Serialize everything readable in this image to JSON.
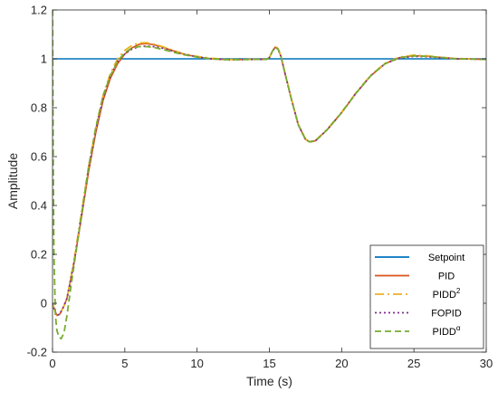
{
  "chart_data": {
    "type": "line",
    "title": "",
    "xlabel": "Time (s)",
    "ylabel": "Amplitude",
    "xlim": [
      0,
      30
    ],
    "ylim": [
      -0.2,
      1.2
    ],
    "x_ticks": [
      0,
      5,
      10,
      15,
      20,
      25,
      30
    ],
    "x_tick_labels": [
      "0",
      "5",
      "10",
      "15",
      "20",
      "25",
      "30"
    ],
    "y_ticks": [
      -0.2,
      0,
      0.2,
      0.4,
      0.6,
      0.8,
      1,
      1.2
    ],
    "y_tick_labels": [
      "-0.2",
      "0",
      "0.2",
      "0.4",
      "0.6",
      "0.8",
      "1",
      "1.2"
    ],
    "grid": false,
    "legend_position": "bottom-right",
    "series": [
      {
        "name": "Setpoint",
        "legend_label": "Setpoint",
        "color": "#0072BD",
        "dash": "solid",
        "points": [
          [
            0,
            1
          ],
          [
            30,
            1
          ]
        ]
      },
      {
        "name": "PID",
        "legend_label": "PID",
        "color": "#D95319",
        "dash": "solid",
        "points": [
          [
            0,
            0
          ],
          [
            0.15,
            -0.03
          ],
          [
            0.3,
            -0.05
          ],
          [
            0.5,
            -0.045
          ],
          [
            0.8,
            -0.01
          ],
          [
            1.0,
            0.02
          ],
          [
            1.5,
            0.17
          ],
          [
            2,
            0.35
          ],
          [
            2.5,
            0.54
          ],
          [
            3,
            0.7
          ],
          [
            3.5,
            0.83
          ],
          [
            4,
            0.92
          ],
          [
            4.5,
            0.98
          ],
          [
            5,
            1.02
          ],
          [
            5.5,
            1.045
          ],
          [
            6,
            1.06
          ],
          [
            6.5,
            1.062
          ],
          [
            7,
            1.058
          ],
          [
            7.5,
            1.05
          ],
          [
            8,
            1.04
          ],
          [
            8.5,
            1.03
          ],
          [
            9,
            1.02
          ],
          [
            10,
            1.008
          ],
          [
            11,
            1.0
          ],
          [
            12,
            0.997
          ],
          [
            13,
            0.997
          ],
          [
            14,
            0.998
          ],
          [
            14.8,
            0.998
          ],
          [
            15,
            1.005
          ],
          [
            15.2,
            1.03
          ],
          [
            15.4,
            1.048
          ],
          [
            15.6,
            1.04
          ],
          [
            15.8,
            1.01
          ],
          [
            16,
            0.96
          ],
          [
            16.5,
            0.84
          ],
          [
            17,
            0.73
          ],
          [
            17.5,
            0.67
          ],
          [
            17.8,
            0.66
          ],
          [
            18.2,
            0.665
          ],
          [
            19,
            0.71
          ],
          [
            20,
            0.78
          ],
          [
            21,
            0.86
          ],
          [
            22,
            0.93
          ],
          [
            23,
            0.98
          ],
          [
            24,
            1.005
          ],
          [
            25,
            1.013
          ],
          [
            26,
            1.01
          ],
          [
            27,
            1.005
          ],
          [
            28,
            1.0
          ],
          [
            30,
            0.998
          ]
        ]
      },
      {
        "name": "PIDD2",
        "legend_label": "PIDD",
        "legend_sup": "2",
        "color": "#EDB120",
        "dash": "10,4,2,4",
        "points": [
          [
            0,
            0
          ],
          [
            0.15,
            -0.03
          ],
          [
            0.3,
            -0.05
          ],
          [
            0.5,
            -0.045
          ],
          [
            0.8,
            -0.01
          ],
          [
            1.0,
            0.02
          ],
          [
            1.5,
            0.18
          ],
          [
            2,
            0.37
          ],
          [
            2.5,
            0.56
          ],
          [
            3,
            0.72
          ],
          [
            3.5,
            0.85
          ],
          [
            4,
            0.94
          ],
          [
            4.5,
            1.0
          ],
          [
            5,
            1.035
          ],
          [
            5.5,
            1.055
          ],
          [
            6,
            1.065
          ],
          [
            6.5,
            1.066
          ],
          [
            7,
            1.06
          ],
          [
            7.5,
            1.052
          ],
          [
            8,
            1.042
          ],
          [
            8.5,
            1.032
          ],
          [
            9,
            1.022
          ],
          [
            10,
            1.01
          ],
          [
            11,
            1.002
          ],
          [
            12,
            0.998
          ],
          [
            13,
            0.997
          ],
          [
            14,
            0.998
          ],
          [
            14.8,
            0.998
          ],
          [
            15,
            1.005
          ],
          [
            15.2,
            1.03
          ],
          [
            15.4,
            1.05
          ],
          [
            15.6,
            1.042
          ],
          [
            15.8,
            1.012
          ],
          [
            16,
            0.962
          ],
          [
            16.5,
            0.842
          ],
          [
            17,
            0.732
          ],
          [
            17.5,
            0.672
          ],
          [
            17.8,
            0.662
          ],
          [
            18.2,
            0.667
          ],
          [
            19,
            0.712
          ],
          [
            20,
            0.782
          ],
          [
            21,
            0.862
          ],
          [
            22,
            0.932
          ],
          [
            23,
            0.982
          ],
          [
            24,
            1.007
          ],
          [
            25,
            1.015
          ],
          [
            26,
            1.012
          ],
          [
            27,
            1.006
          ],
          [
            28,
            1.001
          ],
          [
            30,
            0.998
          ]
        ]
      },
      {
        "name": "FOPID",
        "legend_label": "FOPID",
        "color": "#7E2F8E",
        "dash": "2,3",
        "points": [
          [
            0,
            0
          ],
          [
            0.15,
            -0.03
          ],
          [
            0.3,
            -0.05
          ],
          [
            0.5,
            -0.045
          ],
          [
            0.8,
            -0.01
          ],
          [
            1.0,
            0.02
          ],
          [
            1.5,
            0.17
          ],
          [
            2,
            0.36
          ],
          [
            2.5,
            0.55
          ],
          [
            3,
            0.71
          ],
          [
            3.5,
            0.84
          ],
          [
            4,
            0.93
          ],
          [
            4.5,
            0.99
          ],
          [
            5,
            1.02
          ],
          [
            5.5,
            1.04
          ],
          [
            6,
            1.05
          ],
          [
            6.5,
            1.052
          ],
          [
            7,
            1.05
          ],
          [
            7.5,
            1.045
          ],
          [
            8,
            1.037
          ],
          [
            8.5,
            1.028
          ],
          [
            9,
            1.02
          ],
          [
            10,
            1.008
          ],
          [
            11,
            1.0
          ],
          [
            12,
            0.997
          ],
          [
            13,
            0.997
          ],
          [
            14,
            0.998
          ],
          [
            14.8,
            0.998
          ],
          [
            15,
            1.005
          ],
          [
            15.2,
            1.03
          ],
          [
            15.4,
            1.047
          ],
          [
            15.6,
            1.04
          ],
          [
            15.8,
            1.01
          ],
          [
            16,
            0.96
          ],
          [
            16.5,
            0.84
          ],
          [
            17,
            0.73
          ],
          [
            17.5,
            0.67
          ],
          [
            17.8,
            0.66
          ],
          [
            18.2,
            0.665
          ],
          [
            19,
            0.71
          ],
          [
            20,
            0.78
          ],
          [
            21,
            0.86
          ],
          [
            22,
            0.93
          ],
          [
            23,
            0.98
          ],
          [
            24,
            1.003
          ],
          [
            25,
            1.01
          ],
          [
            26,
            1.008
          ],
          [
            27,
            1.004
          ],
          [
            28,
            1.0
          ],
          [
            30,
            0.998
          ]
        ]
      },
      {
        "name": "PIDDalpha",
        "legend_label": "PIDD",
        "legend_sup": "α",
        "color": "#77AC30",
        "dash": "7,4",
        "points": [
          [
            0,
            1.2
          ],
          [
            0.05,
            0.55
          ],
          [
            0.1,
            0.2
          ],
          [
            0.2,
            -0.05
          ],
          [
            0.3,
            -0.11
          ],
          [
            0.45,
            -0.14
          ],
          [
            0.6,
            -0.145
          ],
          [
            0.8,
            -0.12
          ],
          [
            1.0,
            -0.05
          ],
          [
            1.3,
            0.08
          ],
          [
            1.5,
            0.16
          ],
          [
            2,
            0.36
          ],
          [
            2.5,
            0.56
          ],
          [
            3,
            0.72
          ],
          [
            3.5,
            0.85
          ],
          [
            4,
            0.93
          ],
          [
            4.5,
            0.99
          ],
          [
            5,
            1.025
          ],
          [
            5.5,
            1.045
          ],
          [
            6,
            1.05
          ],
          [
            6.5,
            1.05
          ],
          [
            7,
            1.047
          ],
          [
            7.5,
            1.04
          ],
          [
            8,
            1.033
          ],
          [
            8.5,
            1.025
          ],
          [
            9,
            1.018
          ],
          [
            10,
            1.007
          ],
          [
            11,
            1.0
          ],
          [
            12,
            0.997
          ],
          [
            13,
            0.997
          ],
          [
            14,
            0.998
          ],
          [
            14.8,
            0.998
          ],
          [
            15,
            1.005
          ],
          [
            15.2,
            1.03
          ],
          [
            15.4,
            1.047
          ],
          [
            15.6,
            1.04
          ],
          [
            15.8,
            1.01
          ],
          [
            16,
            0.96
          ],
          [
            16.5,
            0.84
          ],
          [
            17,
            0.73
          ],
          [
            17.5,
            0.67
          ],
          [
            17.8,
            0.66
          ],
          [
            18.2,
            0.665
          ],
          [
            19,
            0.71
          ],
          [
            20,
            0.78
          ],
          [
            21,
            0.86
          ],
          [
            22,
            0.93
          ],
          [
            23,
            0.98
          ],
          [
            24,
            1.005
          ],
          [
            25,
            1.012
          ],
          [
            26,
            1.01
          ],
          [
            27,
            1.005
          ],
          [
            28,
            1.0
          ],
          [
            30,
            0.998
          ]
        ]
      }
    ]
  }
}
